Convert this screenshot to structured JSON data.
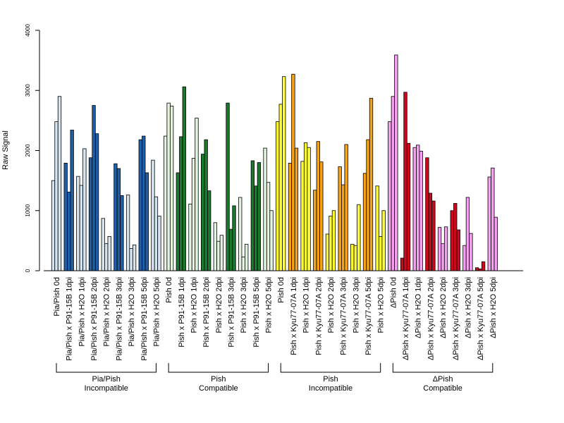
{
  "chart_data": {
    "type": "bar",
    "title": "",
    "xlabel": "",
    "ylabel": "Raw Signal",
    "ylim": [
      0,
      4000
    ],
    "yticks": [
      0,
      1000,
      2000,
      3000,
      4000
    ],
    "grid": false,
    "legend": "none",
    "categories": [
      "Pia/Pish 0d",
      "Pia/Pish x P91-15B 1dpi",
      "Pia/Pish x H2O 1dpi",
      "Pia/Pish x P91-15B 2dpi",
      "Pia/Pish x H2O 2dpi",
      "Pia/Pish x P91-15B 3dpi",
      "Pia/Pish x H2O 3dpi",
      "Pia/Pish x P91-15B 5dpi",
      "Pia/Pish x H2O 5dpi",
      "Pish 0d",
      "Pish x P91-15B 1dpi",
      "Pish x H2O 1dpi",
      "Pish x P91-15B 2dpi",
      "Pish x H2O 2dpi",
      "Pish x P91-15B 3dpi",
      "Pish x H2O 3dpi",
      "Pish x P91-15B 5dpi",
      "Pish x H2O 5dpi",
      "Pish 0d",
      "Pish x Kyu77-07A 1dpi",
      "Pish x H2O 1dpi",
      "Pish x Kyu77-07A 2dpi",
      "Pish x H2O 2dpi",
      "Pish x Kyu77-07A 3dpi",
      "Pish x H2O 3dpi",
      "Pish x Kyu77-07A 5dpi",
      "Pish x H2O 5dpi",
      "ΔPish 0d",
      "ΔPish x Kyu77-07A 1dpi",
      "ΔPish x H2O 1dpi",
      "ΔPish x Kyu77-07A 2dpi",
      "ΔPish x H2O 2dpi",
      "ΔPish x Kyu77-07A 3dpi",
      "ΔPish x H2O 3dpi",
      "ΔPish x Kyu77-07A 5dpi",
      "ΔPish x H2O 5dpi"
    ],
    "values": [
      [
        1500,
        2480,
        2900
      ],
      [
        1790,
        1310,
        2340
      ],
      [
        1570,
        1420,
        2030
      ],
      [
        1880,
        2750,
        2280
      ],
      [
        870,
        450,
        570
      ],
      [
        1780,
        1700,
        1250
      ],
      [
        1260,
        370,
        430
      ],
      [
        2180,
        2240,
        1630
      ],
      [
        1840,
        1230,
        910
      ],
      [
        2240,
        2790,
        2740
      ],
      [
        1630,
        2230,
        3060
      ],
      [
        1110,
        1870,
        2540
      ],
      [
        1940,
        2180,
        1330
      ],
      [
        800,
        490,
        590
      ],
      [
        2790,
        690,
        1080
      ],
      [
        1220,
        230,
        440
      ],
      [
        1830,
        1410,
        1800
      ],
      [
        2040,
        1470,
        1000
      ],
      [
        2480,
        2770,
        3230
      ],
      [
        1790,
        3270,
        2040
      ],
      [
        1820,
        2130,
        2050
      ],
      [
        1340,
        2150,
        1810
      ],
      [
        610,
        910,
        1000
      ],
      [
        1730,
        1430,
        2100
      ],
      [
        440,
        420,
        1100
      ],
      [
        1620,
        2180,
        2870
      ],
      [
        1410,
        570,
        1000
      ],
      [
        2480,
        2900,
        3590
      ],
      [
        210,
        2970,
        2120
      ],
      [
        2050,
        2090,
        1990
      ],
      [
        1880,
        1290,
        1160
      ],
      [
        720,
        450,
        730
      ],
      [
        1000,
        1120,
        680
      ],
      [
        420,
        1220,
        620
      ],
      [
        50,
        30,
        150
      ],
      [
        1560,
        1710,
        890
      ]
    ],
    "colors": [
      "#d6e4f0",
      "#1f5fa8",
      "#d6e4f0",
      "#1f5fa8",
      "#d6e4f0",
      "#1f5fa8",
      "#d6e4f0",
      "#1f5fa8",
      "#d6e4f0",
      "#e3f3df",
      "#1c7a2e",
      "#e3f3df",
      "#1c7a2e",
      "#e3f3df",
      "#1c7a2e",
      "#e3f3df",
      "#1c7a2e",
      "#e3f3df",
      "#ffff33",
      "#f5a31a",
      "#ffff33",
      "#f5a31a",
      "#ffff33",
      "#f5a31a",
      "#ffff33",
      "#f5a31a",
      "#ffff33",
      "#f5a0f0",
      "#cc0a1e",
      "#f5a0f0",
      "#cc0a1e",
      "#f5a0f0",
      "#cc0a1e",
      "#f5a0f0",
      "#cc0a1e",
      "#f5a0f0"
    ],
    "groups": [
      {
        "line1": "Pia/Pish",
        "line2": "Incompatible",
        "start": 0,
        "end": 8
      },
      {
        "line1": "Pish",
        "line2": "Compatible",
        "start": 9,
        "end": 17
      },
      {
        "line1": "Pish",
        "line2": "Incompatible",
        "start": 18,
        "end": 26
      },
      {
        "line1": "ΔPish",
        "line2": "Compatible",
        "start": 27,
        "end": 35
      }
    ]
  }
}
